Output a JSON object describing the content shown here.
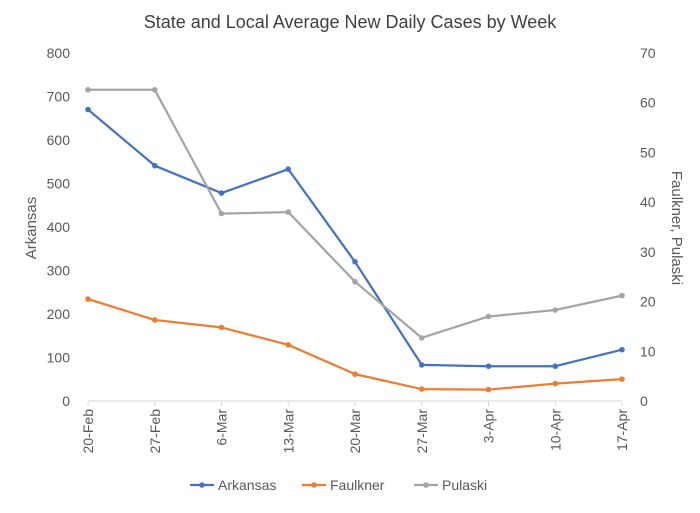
{
  "chart_data": {
    "type": "line",
    "title": "State and Local Average New Daily Cases by Week",
    "x": [
      "20-Feb",
      "27-Feb",
      "6-Mar",
      "13-Mar",
      "20-Mar",
      "27-Mar",
      "3-Apr",
      "10-Apr",
      "17-Apr"
    ],
    "y_left": {
      "label": "Arkansas",
      "range": [
        0,
        800
      ],
      "ticks": [
        0,
        100,
        200,
        300,
        400,
        500,
        600,
        700,
        800
      ]
    },
    "y_right": {
      "label": "Faulkner, Pulaski",
      "range": [
        0,
        70
      ],
      "ticks": [
        0,
        10,
        20,
        30,
        40,
        50,
        60,
        70
      ]
    },
    "series": [
      {
        "name": "Arkansas",
        "axis": "left",
        "color": "#4472C4",
        "values": [
          670,
          541,
          478,
          533,
          320,
          83,
          80,
          80,
          118
        ]
      },
      {
        "name": "Faulkner",
        "axis": "right",
        "color": "#ED7D31",
        "values": [
          20.5,
          16.3,
          14.8,
          11.3,
          5.4,
          2.4,
          2.3,
          3.5,
          4.4
        ]
      },
      {
        "name": "Pulaski",
        "axis": "right",
        "color": "#A5A5A5",
        "values": [
          62.6,
          62.6,
          37.7,
          38.0,
          24.0,
          12.7,
          17.0,
          18.3,
          21.2
        ]
      }
    ],
    "grid": false,
    "legend_position": "bottom"
  }
}
